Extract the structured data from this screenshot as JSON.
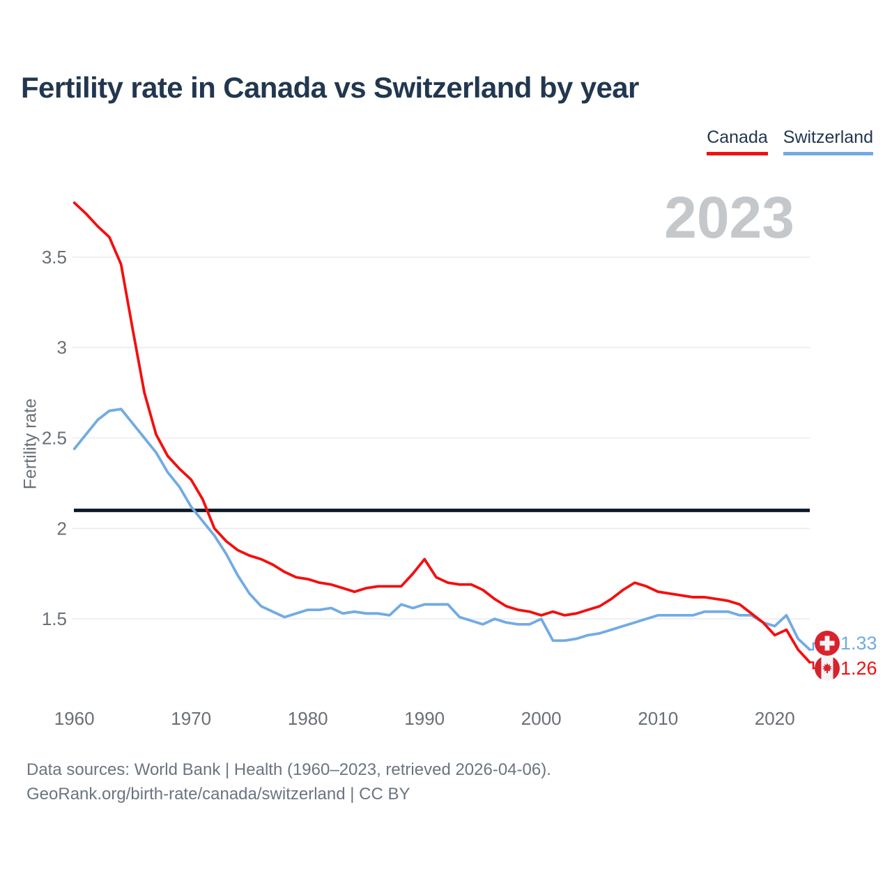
{
  "title": "Fertility rate in Canada vs Switzerland by year",
  "watermark": "2023",
  "legend": {
    "items": [
      {
        "label": "Canada",
        "color": "#f30f0f"
      },
      {
        "label": "Switzerland",
        "color": "#72abe3"
      }
    ]
  },
  "y_axis": {
    "label": "Fertility rate",
    "ticks": [
      "1.5",
      "2",
      "2.5",
      "3",
      "3.5"
    ],
    "tick_values": [
      1.5,
      2,
      2.5,
      3,
      3.5
    ]
  },
  "x_axis": {
    "ticks": [
      1960,
      1970,
      1980,
      1990,
      2000,
      2010,
      2020
    ]
  },
  "reference_line": {
    "value": 2.1,
    "color": "#0c1a28"
  },
  "end_labels": [
    {
      "series": "Switzerland",
      "value": "1.33",
      "flag": "switzerland-flag",
      "color": "#72abe3"
    },
    {
      "series": "Canada",
      "value": "1.26",
      "flag": "canada-flag",
      "color": "#f30f0f"
    }
  ],
  "footer": {
    "line1": "Data sources: World Bank | Health (1960–2023, retrieved 2026-04-06).",
    "line2": "GeoRank.org/birth-rate/canada/switzerland | CC BY"
  },
  "colors": {
    "grid": "#e9ecef",
    "axis_text": "#696f75",
    "title_text": "#22374f",
    "watermark": "#c5c8cb",
    "footer_text": "#6b7480",
    "flag_red": "#d8222d",
    "flag_white": "#f2f4f5"
  },
  "chart_data": {
    "type": "line",
    "title": "Fertility rate in Canada vs Switzerland by year",
    "xlabel": "",
    "ylabel": "Fertility rate",
    "xlim": [
      1960,
      2023
    ],
    "ylim": [
      1.1,
      3.9
    ],
    "x_ticks": [
      1960,
      1970,
      1980,
      1990,
      2000,
      2010,
      2020
    ],
    "y_ticks": [
      1.5,
      2,
      2.5,
      3,
      3.5
    ],
    "grid": "horizontal",
    "legend_position": "top-right",
    "benchmark_line": 2.1,
    "end_label_values": {
      "Switzerland": 1.33,
      "Canada": 1.26
    },
    "x": [
      1960,
      1961,
      1962,
      1963,
      1964,
      1965,
      1966,
      1967,
      1968,
      1969,
      1970,
      1971,
      1972,
      1973,
      1974,
      1975,
      1976,
      1977,
      1978,
      1979,
      1980,
      1981,
      1982,
      1983,
      1984,
      1985,
      1986,
      1987,
      1988,
      1989,
      1990,
      1991,
      1992,
      1993,
      1994,
      1995,
      1996,
      1997,
      1998,
      1999,
      2000,
      2001,
      2002,
      2003,
      2004,
      2005,
      2006,
      2007,
      2008,
      2009,
      2010,
      2011,
      2012,
      2013,
      2014,
      2015,
      2016,
      2017,
      2018,
      2019,
      2020,
      2021,
      2022,
      2023
    ],
    "series": [
      {
        "name": "Canada",
        "color": "#f30f0f",
        "values": [
          3.8,
          3.74,
          3.67,
          3.61,
          3.46,
          3.1,
          2.75,
          2.52,
          2.4,
          2.33,
          2.27,
          2.16,
          2.0,
          1.93,
          1.88,
          1.85,
          1.83,
          1.8,
          1.76,
          1.73,
          1.72,
          1.7,
          1.69,
          1.67,
          1.65,
          1.67,
          1.68,
          1.68,
          1.68,
          1.75,
          1.83,
          1.73,
          1.7,
          1.69,
          1.69,
          1.66,
          1.61,
          1.57,
          1.55,
          1.54,
          1.52,
          1.54,
          1.52,
          1.53,
          1.55,
          1.57,
          1.61,
          1.66,
          1.7,
          1.68,
          1.65,
          1.64,
          1.63,
          1.62,
          1.62,
          1.61,
          1.6,
          1.58,
          1.53,
          1.48,
          1.41,
          1.44,
          1.33,
          1.26
        ]
      },
      {
        "name": "Switzerland",
        "color": "#72abe3",
        "values": [
          2.44,
          2.52,
          2.6,
          2.65,
          2.66,
          2.58,
          2.5,
          2.42,
          2.31,
          2.23,
          2.12,
          2.04,
          1.96,
          1.86,
          1.74,
          1.64,
          1.57,
          1.54,
          1.51,
          1.53,
          1.55,
          1.55,
          1.56,
          1.53,
          1.54,
          1.53,
          1.53,
          1.52,
          1.58,
          1.56,
          1.58,
          1.58,
          1.58,
          1.51,
          1.49,
          1.47,
          1.5,
          1.48,
          1.47,
          1.47,
          1.5,
          1.38,
          1.38,
          1.39,
          1.41,
          1.42,
          1.44,
          1.46,
          1.48,
          1.5,
          1.52,
          1.52,
          1.52,
          1.52,
          1.54,
          1.54,
          1.54,
          1.52,
          1.52,
          1.48,
          1.46,
          1.52,
          1.39,
          1.33
        ]
      }
    ]
  }
}
